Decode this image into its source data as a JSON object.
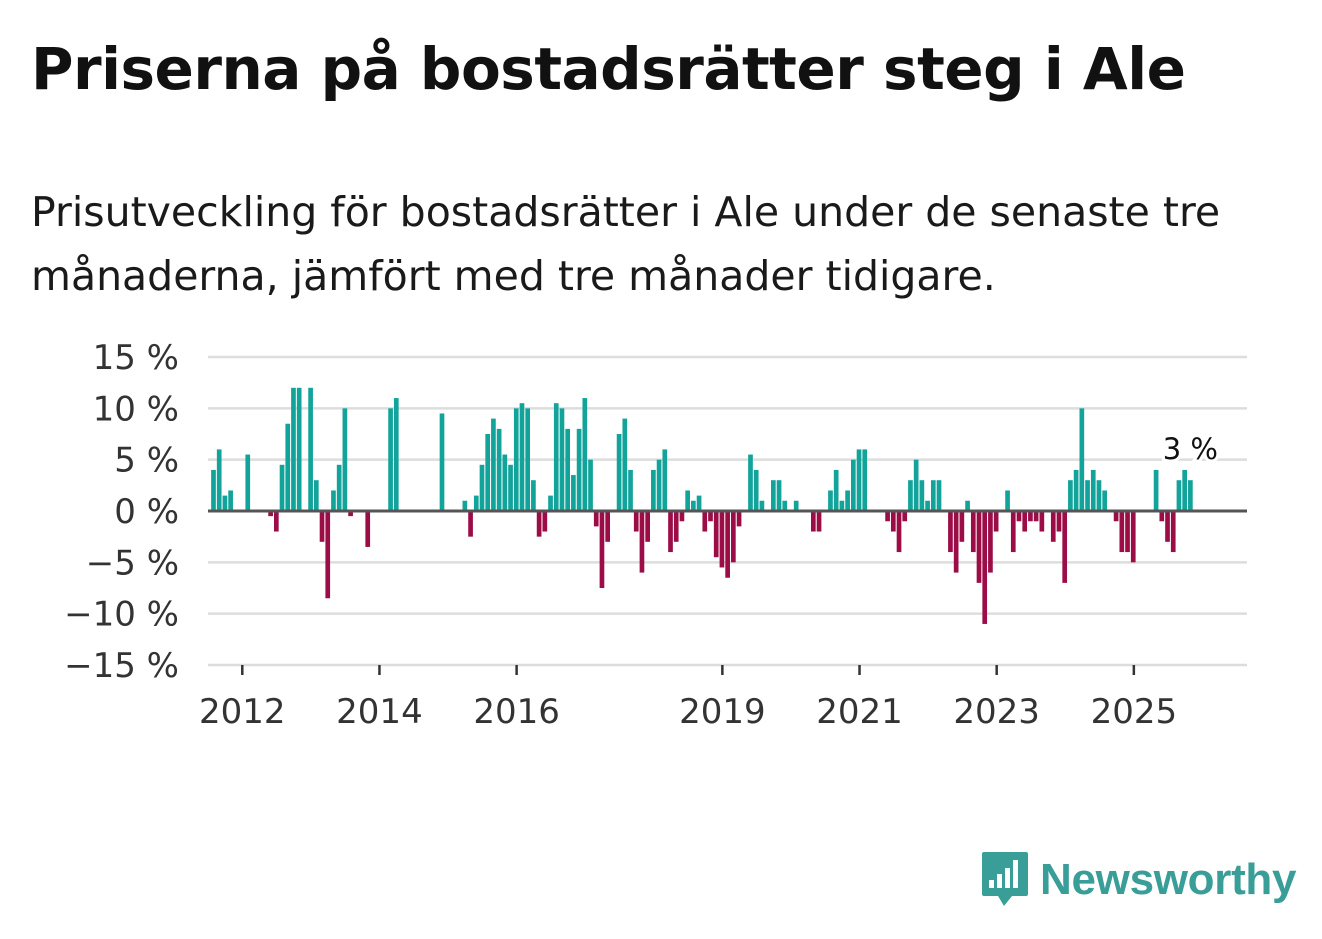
{
  "title": "Priserna på bostadsrätter steg i Ale",
  "subtitle": "Prisutveckling för bostadsrätter i Ale under de senaste tre månaderna, jämfört med tre månader tidigare.",
  "brand": {
    "name": "Newsworthy",
    "color": "#3a9e98"
  },
  "colors": {
    "positive": "#12a39a",
    "negative": "#9c0d47",
    "grid": "#dddddd",
    "zero_line": "#555555"
  },
  "chart_data": {
    "type": "bar",
    "x_start": 2011.58,
    "x_step": 0.0833,
    "values": [
      4,
      6,
      1.5,
      2,
      0,
      0,
      5.5,
      0,
      0,
      0,
      -0.5,
      -2,
      4.5,
      8.5,
      12,
      12,
      0,
      12,
      3,
      -3,
      -8.5,
      2,
      4.5,
      10,
      -0.5,
      0,
      0,
      -3.5,
      0,
      0,
      0,
      10,
      11,
      0,
      0,
      0,
      0,
      0,
      0,
      0,
      9.5,
      0,
      0,
      0,
      1,
      -2.5,
      1.5,
      4.5,
      7.5,
      9,
      8,
      5.5,
      4.5,
      10,
      10.5,
      10,
      3,
      -2.5,
      -2,
      1.5,
      10.5,
      10,
      8,
      3.5,
      8,
      11,
      5,
      -1.5,
      -7.5,
      -3,
      0,
      7.5,
      9,
      4,
      -2,
      -6,
      -3,
      4,
      5,
      6,
      -4,
      -3,
      -1,
      2,
      1,
      1.5,
      -2,
      -1,
      -4.5,
      -5.5,
      -6.5,
      -5,
      -1.5,
      0,
      5.5,
      4,
      1,
      0,
      3,
      3,
      1,
      0,
      1,
      0,
      0,
      -2,
      -2,
      0,
      2,
      4,
      1,
      2,
      5,
      6,
      6,
      0,
      0,
      0,
      -1,
      -2,
      -4,
      -1,
      3,
      5,
      3,
      1,
      3,
      3,
      0,
      -4,
      -6,
      -3,
      1,
      -4,
      -7,
      -11,
      -6,
      -2,
      0,
      2,
      -4,
      -1,
      -2,
      -1,
      -1,
      -2,
      0,
      -3,
      -2,
      -7,
      3,
      4,
      10,
      3,
      4,
      3,
      2,
      0,
      -1,
      -4,
      -4,
      -5,
      0,
      0,
      0,
      4,
      -1,
      -3,
      -4,
      3,
      4,
      3
    ],
    "x_ticks": [
      2012,
      2014,
      2016,
      2019,
      2021,
      2023,
      2025
    ],
    "y_ticks": [
      15,
      10,
      5,
      0,
      -5,
      -10,
      -15
    ],
    "y_tick_labels": [
      "15 %",
      "10 %",
      "5 %",
      "0 %",
      "−5 %",
      "−10 %",
      "−15 %"
    ],
    "ylim": [
      -15,
      15
    ],
    "last_label": "3 %",
    "xlabel": "",
    "ylabel": ""
  }
}
